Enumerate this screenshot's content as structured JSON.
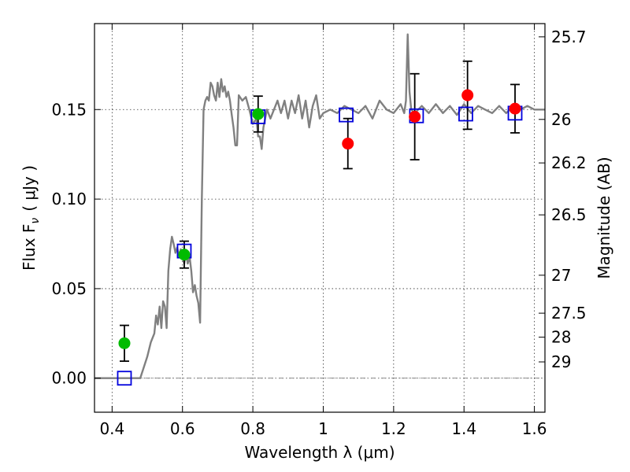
{
  "chart_data": {
    "type": "scatter",
    "xlabel": "Wavelength  λ (μm)",
    "ylabel": "Flux  F",
    "ylabel_sub": "ν",
    "ylabel_unit": "( μJy )",
    "y2label": "Magnitude (AB)",
    "xlim": [
      0.35,
      1.63
    ],
    "ylim": [
      -0.019,
      0.198
    ],
    "grid": true,
    "x_ticks": [
      0.4,
      0.6,
      0.8,
      1.0,
      1.2,
      1.4,
      1.6
    ],
    "x_tick_labels": [
      "0.4",
      "0.6",
      "0.8",
      "1",
      "1.2",
      "1.4",
      "1.6"
    ],
    "y_ticks": [
      0.0,
      0.05,
      0.1,
      0.15
    ],
    "y_tick_labels": [
      "0.00",
      "0.05",
      "0.10",
      "0.15"
    ],
    "mag_ticks": [
      {
        "label": "25.7",
        "flux": 0.1906
      },
      {
        "label": "26",
        "flux": 0.1445
      },
      {
        "label": "26.2",
        "flux": 0.1202
      },
      {
        "label": "26.5",
        "flux": 0.0912
      },
      {
        "label": "27",
        "flux": 0.0575
      },
      {
        "label": "27.5",
        "flux": 0.0363
      },
      {
        "label": "28",
        "flux": 0.0229
      },
      {
        "label": "29",
        "flux": 0.0091
      }
    ],
    "series": [
      {
        "kind": "line",
        "color": "#808080",
        "x": [
          0.35,
          0.48,
          0.5,
          0.51,
          0.52,
          0.525,
          0.53,
          0.535,
          0.54,
          0.545,
          0.55,
          0.555,
          0.56,
          0.565,
          0.57,
          0.575,
          0.58,
          0.585,
          0.59,
          0.595,
          0.6,
          0.605,
          0.61,
          0.615,
          0.62,
          0.625,
          0.63,
          0.635,
          0.64,
          0.645,
          0.65,
          0.655,
          0.66,
          0.665,
          0.67,
          0.675,
          0.68,
          0.685,
          0.69,
          0.695,
          0.7,
          0.705,
          0.71,
          0.715,
          0.72,
          0.725,
          0.73,
          0.735,
          0.74,
          0.745,
          0.75,
          0.755,
          0.76,
          0.77,
          0.78,
          0.79,
          0.8,
          0.81,
          0.815,
          0.82,
          0.825,
          0.83,
          0.84,
          0.85,
          0.86,
          0.87,
          0.88,
          0.89,
          0.9,
          0.91,
          0.92,
          0.93,
          0.94,
          0.95,
          0.96,
          0.97,
          0.98,
          0.99,
          1.0,
          1.02,
          1.04,
          1.06,
          1.08,
          1.1,
          1.12,
          1.14,
          1.16,
          1.18,
          1.2,
          1.22,
          1.23,
          1.235,
          1.24,
          1.245,
          1.25,
          1.26,
          1.28,
          1.3,
          1.32,
          1.34,
          1.36,
          1.38,
          1.4,
          1.42,
          1.44,
          1.46,
          1.48,
          1.5,
          1.52,
          1.54,
          1.56,
          1.58,
          1.6,
          1.63
        ],
        "y": [
          0.0,
          0.0,
          0.012,
          0.02,
          0.025,
          0.035,
          0.03,
          0.04,
          0.028,
          0.043,
          0.04,
          0.028,
          0.06,
          0.072,
          0.079,
          0.075,
          0.07,
          0.073,
          0.068,
          0.072,
          0.068,
          0.064,
          0.07,
          0.064,
          0.068,
          0.06,
          0.048,
          0.052,
          0.046,
          0.042,
          0.031,
          0.1,
          0.15,
          0.155,
          0.157,
          0.155,
          0.165,
          0.163,
          0.158,
          0.155,
          0.165,
          0.157,
          0.167,
          0.16,
          0.163,
          0.157,
          0.16,
          0.155,
          0.147,
          0.14,
          0.13,
          0.13,
          0.158,
          0.155,
          0.157,
          0.15,
          0.142,
          0.145,
          0.135,
          0.135,
          0.128,
          0.14,
          0.15,
          0.145,
          0.15,
          0.155,
          0.148,
          0.155,
          0.145,
          0.155,
          0.148,
          0.158,
          0.145,
          0.155,
          0.14,
          0.152,
          0.158,
          0.145,
          0.148,
          0.15,
          0.148,
          0.152,
          0.15,
          0.148,
          0.152,
          0.145,
          0.155,
          0.15,
          0.148,
          0.153,
          0.148,
          0.155,
          0.192,
          0.16,
          0.15,
          0.148,
          0.152,
          0.148,
          0.153,
          0.148,
          0.152,
          0.147,
          0.153,
          0.148,
          0.152,
          0.15,
          0.148,
          0.152,
          0.148,
          0.152,
          0.15,
          0.152,
          0.15,
          0.15
        ]
      },
      {
        "kind": "points",
        "color": "#00bb00",
        "x": [
          0.435,
          0.605,
          0.815
        ],
        "y": [
          0.0195,
          0.069,
          0.1475
        ],
        "err": [
          0.01,
          0.0075,
          0.01
        ]
      },
      {
        "kind": "points",
        "color": "#ff0000",
        "x": [
          1.07,
          1.26,
          1.41,
          1.545
        ],
        "y": [
          0.131,
          0.146,
          0.158,
          0.1505
        ],
        "err": [
          0.014,
          0.024,
          0.019,
          0.0135
        ]
      },
      {
        "kind": "model",
        "color": "#0000dd",
        "x": [
          0.435,
          0.605,
          0.815,
          1.065,
          1.265,
          1.405,
          1.545
        ],
        "y": [
          0.0,
          0.071,
          0.146,
          0.147,
          0.1465,
          0.1475,
          0.148
        ]
      }
    ]
  }
}
